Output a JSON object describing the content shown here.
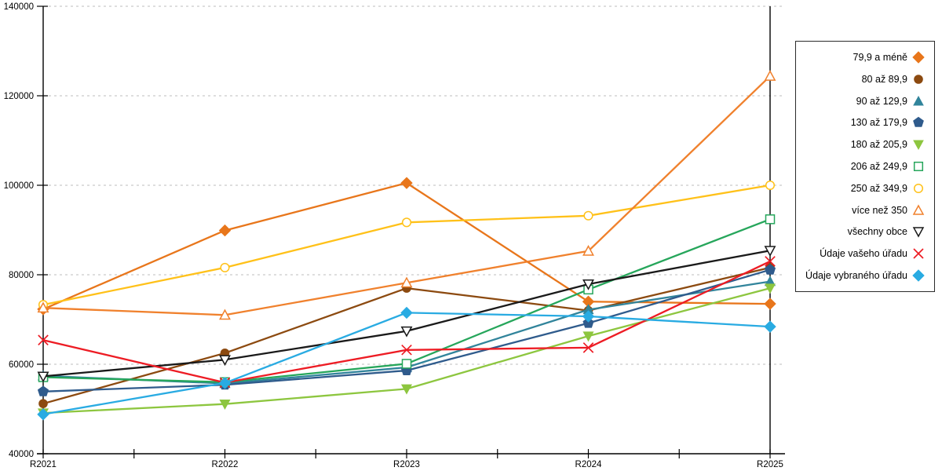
{
  "chart_data": {
    "type": "line",
    "categories": [
      "R2021",
      "R2022",
      "R2023",
      "R2024",
      "R2025"
    ],
    "series": [
      {
        "name": "79,9 a méně",
        "color": "#E8761B",
        "marker": "diamond",
        "fill": "solid",
        "values": [
          72300,
          89900,
          100500,
          74000,
          73500
        ]
      },
      {
        "name": "80 až 89,9",
        "color": "#8C4A10",
        "marker": "circle",
        "fill": "solid",
        "values": [
          51200,
          62500,
          77000,
          72000,
          81600
        ]
      },
      {
        "name": "90 až 129,9",
        "color": "#31849B",
        "marker": "triangle-up",
        "fill": "solid",
        "values": [
          57400,
          55700,
          59300,
          72200,
          78500
        ]
      },
      {
        "name": "130 až 179,9",
        "color": "#2F5B8C",
        "marker": "pentagon",
        "fill": "solid",
        "values": [
          53900,
          55400,
          58600,
          69200,
          81100
        ]
      },
      {
        "name": "180 až 205,9",
        "color": "#8DC63F",
        "marker": "triangle-down",
        "fill": "solid",
        "values": [
          49100,
          51100,
          54500,
          66300,
          77000
        ]
      },
      {
        "name": "206 až 249,9",
        "color": "#26A65B",
        "marker": "square",
        "fill": "open",
        "values": [
          57100,
          56000,
          60100,
          76700,
          92400
        ]
      },
      {
        "name": "250 až 349,9",
        "color": "#FFC119",
        "marker": "circle",
        "fill": "open",
        "values": [
          73300,
          81600,
          91700,
          93200,
          100000
        ]
      },
      {
        "name": "více než 350",
        "color": "#F0812D",
        "marker": "triangle-up",
        "fill": "open",
        "values": [
          72600,
          71000,
          78200,
          85300,
          124400
        ]
      },
      {
        "name": "všechny obce",
        "color": "#1A1A1A",
        "marker": "triangle-down",
        "fill": "open",
        "values": [
          57300,
          61000,
          67400,
          77900,
          85400
        ]
      },
      {
        "name": "Údaje vašeho úřadu",
        "color": "#ED1C24",
        "marker": "x",
        "fill": "open",
        "values": [
          65400,
          55900,
          63200,
          63700,
          83000
        ]
      },
      {
        "name": "Údaje vybraného úřadu",
        "color": "#29ABE2",
        "marker": "diamond",
        "fill": "solid",
        "values": [
          48800,
          55800,
          71500,
          70700,
          68400
        ]
      }
    ],
    "ylim": [
      40000,
      140000
    ],
    "ytick_step": 20000,
    "ytick_labels": [
      "40000",
      "60000",
      "80000",
      "100000",
      "120000",
      "140000"
    ],
    "grid": "horizontal-dashed",
    "legend_position": "right",
    "title": "",
    "xlabel": "",
    "ylabel": ""
  },
  "colors": {
    "grid": "#BDBDBD",
    "axis": "#000000",
    "background": "#FFFFFF"
  }
}
